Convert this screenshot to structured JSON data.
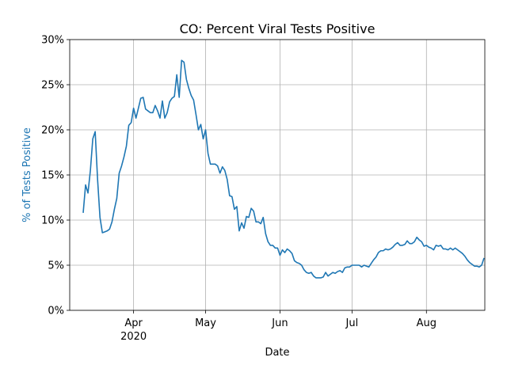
{
  "chart_data": {
    "type": "line",
    "title": "CO: Percent Viral Tests Positive",
    "xlabel": "Date",
    "ylabel": "% of Tests Positive",
    "x_tick_sublabel": "2020",
    "categories": [
      null,
      null,
      null,
      null,
      null,
      null,
      null,
      null,
      null,
      null,
      null,
      null,
      null,
      null,
      null,
      null,
      null,
      null,
      null,
      null,
      null,
      "Apr",
      null,
      null,
      null,
      null,
      null,
      null,
      null,
      null,
      null,
      null,
      null,
      null,
      null,
      null,
      null,
      null,
      null,
      null,
      null,
      null,
      null,
      null,
      null,
      null,
      null,
      null,
      null,
      null,
      null,
      "May",
      null,
      null,
      null,
      null,
      null,
      null,
      null,
      null,
      null,
      null,
      null,
      null,
      null,
      null,
      null,
      null,
      null,
      null,
      null,
      null,
      null,
      null,
      null,
      null,
      null,
      null,
      null,
      null,
      null,
      null,
      "Jun",
      null,
      null,
      null,
      null,
      null,
      null,
      null,
      null,
      null,
      null,
      null,
      null,
      null,
      null,
      null,
      null,
      null,
      null,
      null,
      null,
      null,
      null,
      null,
      null,
      null,
      null,
      null,
      null,
      null,
      "Jul",
      null,
      null,
      null,
      null,
      null,
      null,
      null,
      null,
      null,
      null,
      null,
      null,
      null,
      null,
      null,
      null,
      null,
      null,
      null,
      null,
      null,
      null,
      null,
      null,
      null,
      null,
      null,
      null,
      null,
      null,
      "Aug",
      null,
      null,
      null,
      null,
      null,
      null,
      null,
      null,
      null,
      null,
      null,
      null,
      null,
      null,
      null,
      null,
      null,
      null,
      null,
      null,
      null,
      null,
      null,
      null
    ],
    "series": [
      {
        "color": "#1f77b4",
        "values": [
          10.8,
          13.9,
          13.0,
          15.5,
          19.0,
          19.8,
          14.5,
          10.3,
          8.6,
          8.7,
          8.8,
          9.0,
          9.8,
          11.2,
          12.4,
          15.2,
          16.0,
          17.0,
          18.2,
          20.5,
          20.8,
          22.4,
          21.3,
          22.4,
          23.5,
          23.6,
          22.3,
          22.1,
          21.9,
          21.9,
          22.7,
          22.1,
          21.3,
          23.2,
          21.3,
          21.9,
          23.1,
          23.5,
          23.7,
          26.1,
          23.6,
          27.7,
          27.5,
          25.6,
          24.6,
          23.8,
          23.3,
          21.7,
          20.0,
          20.6,
          19.0,
          20.0,
          17.4,
          16.2,
          16.2,
          16.2,
          16.0,
          15.2,
          15.9,
          15.5,
          14.5,
          12.7,
          12.6,
          11.2,
          11.5,
          8.8,
          9.7,
          9.1,
          10.4,
          10.3,
          11.3,
          11.0,
          9.8,
          9.8,
          9.6,
          10.3,
          8.5,
          7.6,
          7.2,
          7.2,
          6.9,
          6.9,
          6.1,
          6.7,
          6.4,
          6.8,
          6.6,
          6.3,
          5.5,
          5.3,
          5.2,
          5.0,
          4.5,
          4.2,
          4.1,
          4.2,
          3.8,
          3.6,
          3.6,
          3.6,
          3.7,
          4.2,
          3.8,
          4.0,
          4.2,
          4.1,
          4.3,
          4.4,
          4.2,
          4.7,
          4.8,
          4.8,
          5.0,
          5.0,
          5.0,
          5.0,
          4.8,
          5.0,
          4.9,
          4.8,
          5.2,
          5.6,
          5.9,
          6.4,
          6.6,
          6.6,
          6.8,
          6.7,
          6.8,
          7.0,
          7.3,
          7.5,
          7.2,
          7.2,
          7.3,
          7.7,
          7.4,
          7.4,
          7.6,
          8.1,
          7.8,
          7.6,
          7.1,
          7.2,
          7.0,
          6.9,
          6.7,
          7.2,
          7.1,
          7.2,
          6.8,
          6.8,
          6.7,
          6.9,
          6.7,
          6.9,
          6.7,
          6.5,
          6.3,
          6.0,
          5.6,
          5.3,
          5.1,
          4.9,
          4.9,
          4.8,
          5.0,
          5.8
        ]
      }
    ],
    "ylim": [
      0,
      30
    ],
    "yticks": [
      {
        "value": 0,
        "label": "0%"
      },
      {
        "value": 5,
        "label": "5%"
      },
      {
        "value": 10,
        "label": "10%"
      },
      {
        "value": 15,
        "label": "15%"
      },
      {
        "value": 20,
        "label": "20%"
      },
      {
        "value": 25,
        "label": "25%"
      },
      {
        "value": 30,
        "label": "30%"
      }
    ],
    "grid": true,
    "ylabel_color": "#1f77b4"
  }
}
